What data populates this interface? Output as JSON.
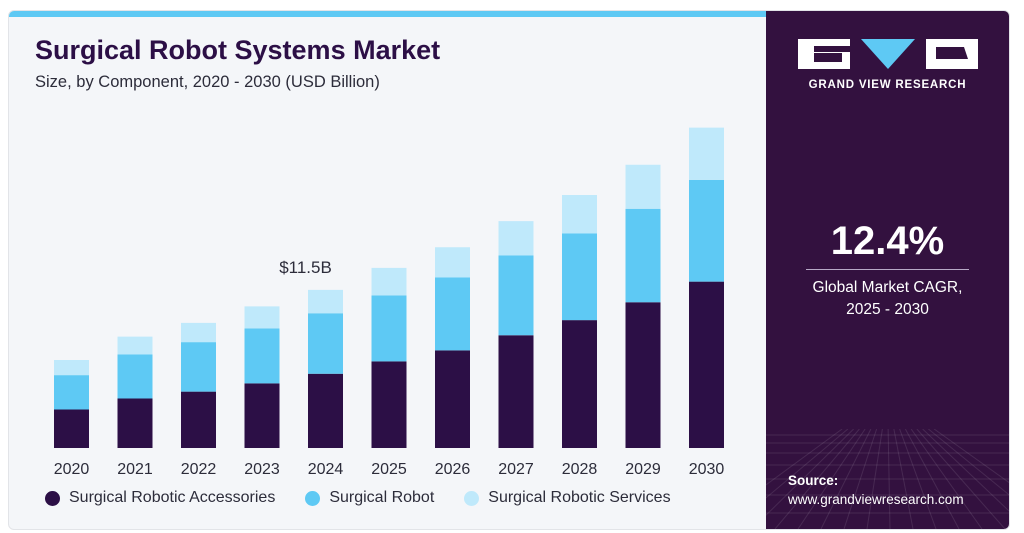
{
  "header": {
    "title": "Surgical Robot Systems Market",
    "subtitle": "Size, by Component, 2020 - 2030 (USD Billion)"
  },
  "brand": {
    "name": "GRAND VIEW RESEARCH",
    "logo": "gvr-logo"
  },
  "cagr": {
    "value": "12.4%",
    "label_line1": "Global Market CAGR,",
    "label_line2": "2025 - 2030"
  },
  "source": {
    "label": "Source:",
    "url": "www.grandviewresearch.com"
  },
  "colors": {
    "accessories": "#2c0f46",
    "robot": "#5ec9f4",
    "services": "#bfe9fb",
    "sidebar": "#33113f",
    "accent_bar": "#5ec9f4"
  },
  "chart_data": {
    "type": "bar",
    "stacked": true,
    "title": "Surgical Robot Systems Market",
    "subtitle": "Size, by Component, 2020 - 2030 (USD Billion)",
    "categories": [
      "2020",
      "2021",
      "2022",
      "2023",
      "2024",
      "2025",
      "2026",
      "2027",
      "2028",
      "2029",
      "2030"
    ],
    "series": [
      {
        "name": "Surgical Robotic Accessories",
        "color": "#2c0f46",
        "values": [
          2.8,
          3.6,
          4.1,
          4.7,
          5.4,
          6.3,
          7.1,
          8.2,
          9.3,
          10.6,
          12.1
        ]
      },
      {
        "name": "Surgical Robot",
        "color": "#5ec9f4",
        "values": [
          2.5,
          3.2,
          3.6,
          4.0,
          4.4,
          4.8,
          5.3,
          5.8,
          6.3,
          6.8,
          7.4
        ]
      },
      {
        "name": "Surgical Robotic Services",
        "color": "#bfe9fb",
        "values": [
          1.1,
          1.3,
          1.4,
          1.6,
          1.7,
          2.0,
          2.2,
          2.5,
          2.8,
          3.2,
          3.8
        ]
      }
    ],
    "annotations": [
      {
        "category": "2024",
        "text": "$11.5B"
      }
    ],
    "ylim": [
      0,
      24
    ],
    "grid": false,
    "legend": "bottom"
  }
}
